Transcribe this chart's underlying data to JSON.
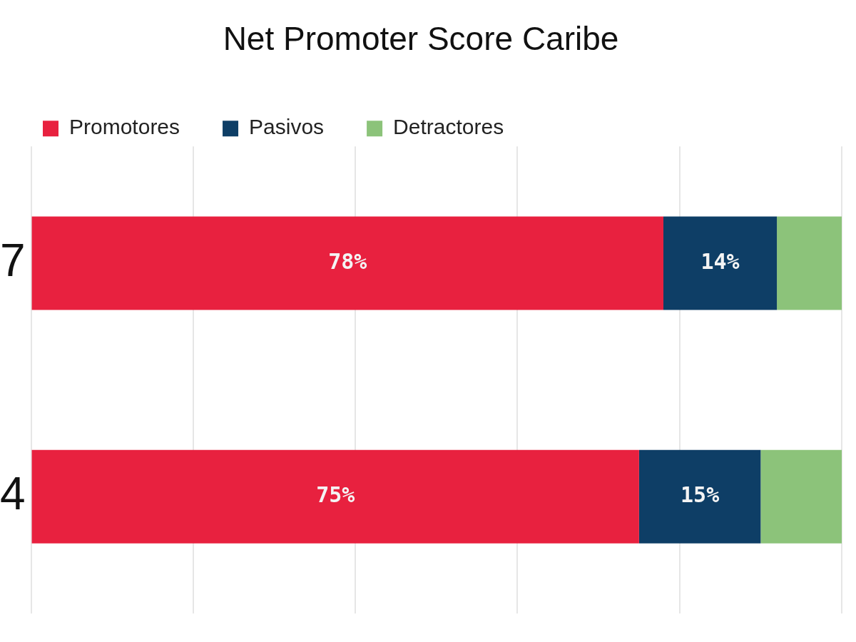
{
  "chart_data": {
    "type": "bar",
    "orientation": "horizontal",
    "stacked": true,
    "title": "Net Promoter Score Caribe",
    "categories": [
      "7",
      "4"
    ],
    "series": [
      {
        "name": "Promotores",
        "color": "#e8213f",
        "values": [
          78,
          75
        ],
        "value_labels": [
          "78%",
          "75%"
        ]
      },
      {
        "name": "Pasivos",
        "color": "#0e3e66",
        "values": [
          14,
          15
        ],
        "value_labels": [
          "14%",
          "15%"
        ]
      },
      {
        "name": "Detractores",
        "color": "#8cc37a",
        "values": [
          8,
          10
        ],
        "value_labels": [
          null,
          null
        ]
      }
    ],
    "xlim": [
      0,
      100
    ],
    "xticks": [
      {
        "value": 0,
        "label": null
      },
      {
        "value": 20,
        "label": null
      },
      {
        "value": 40,
        "label": null
      },
      {
        "value": 60,
        "label": null
      },
      {
        "value": 80,
        "label": null
      },
      {
        "value": 100,
        "label": null
      }
    ],
    "tick_labels": "y",
    "grid": "x",
    "legend": "top left"
  }
}
